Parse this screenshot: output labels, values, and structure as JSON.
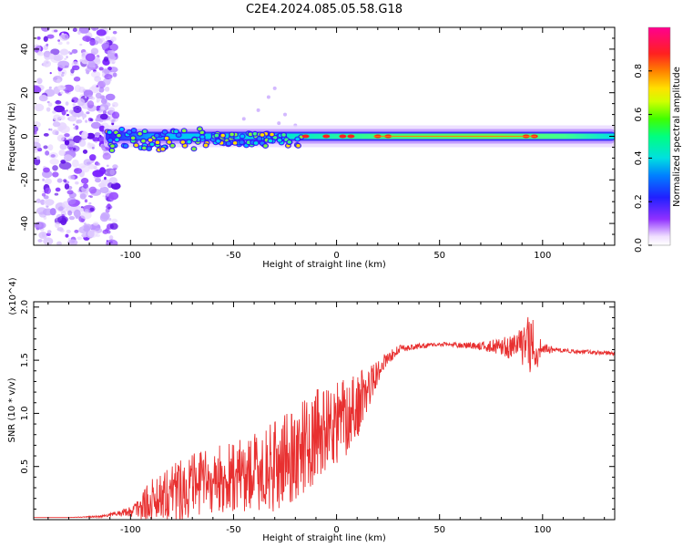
{
  "title": "C2E4.2024.085.05.58.G18",
  "chart_data": [
    {
      "type": "heatmap",
      "xlabel": "Height of straight line (km)",
      "ylabel": "Frequency (Hz)",
      "xlim": [
        -147,
        135
      ],
      "ylim": [
        -50,
        50
      ],
      "x_ticks": [
        -100,
        -50,
        0,
        50,
        100
      ],
      "y_ticks": [
        -40,
        -20,
        0,
        20,
        40
      ],
      "colorbar": {
        "label": "Normalized spectral amplitude",
        "range": [
          0,
          1
        ],
        "ticks": [
          "0.0",
          "0.2",
          "0.4",
          "0.6",
          "0.8"
        ],
        "colormap": "rainbow (purple-blue-cyan-green-yellow-red-magenta)"
      },
      "ridge": {
        "frequency_hz": 0,
        "start_km": -113,
        "end_km": 135,
        "note": "diffuse noise scatter spans x < -108 km across all frequencies"
      }
    },
    {
      "type": "line",
      "xlabel": "Height of straight line (km)",
      "ylabel": "SNR (10 * v/v)",
      "y_multiplier": "(x10^4)",
      "xlim": [
        -147,
        135
      ],
      "ylim": [
        0,
        2.05
      ],
      "x_ticks": [
        -100,
        -50,
        0,
        50,
        100
      ],
      "y_ticks": [
        "0.5",
        "1.0",
        "1.5",
        "2.0"
      ],
      "series": [
        {
          "color": "#e83030",
          "x": [
            -147,
            -130,
            -115,
            -108,
            -100,
            -95,
            -90,
            -85,
            -80,
            -75,
            -70,
            -65,
            -60,
            -55,
            -50,
            -45,
            -40,
            -35,
            -30,
            -25,
            -20,
            -15,
            -10,
            -5,
            0,
            5,
            10,
            15,
            20,
            25,
            30,
            35,
            40,
            45,
            50,
            55,
            60,
            65,
            70,
            75,
            80,
            85,
            90,
            93,
            95,
            97,
            100,
            105,
            110,
            115,
            120,
            125,
            130,
            135
          ],
          "y": [
            0.02,
            0.02,
            0.03,
            0.05,
            0.08,
            0.12,
            0.18,
            0.24,
            0.28,
            0.3,
            0.32,
            0.34,
            0.36,
            0.38,
            0.4,
            0.42,
            0.44,
            0.46,
            0.5,
            0.56,
            0.62,
            0.7,
            0.78,
            0.85,
            0.9,
            0.98,
            1.08,
            1.22,
            1.4,
            1.52,
            1.6,
            1.62,
            1.63,
            1.64,
            1.65,
            1.65,
            1.64,
            1.64,
            1.63,
            1.63,
            1.63,
            1.62,
            1.64,
            1.65,
            1.62,
            1.6,
            1.61,
            1.6,
            1.59,
            1.58,
            1.58,
            1.57,
            1.57,
            1.56
          ],
          "noise_amplitude": [
            0,
            0,
            0.01,
            0.02,
            0.05,
            0.12,
            0.2,
            0.25,
            0.28,
            0.3,
            0.3,
            0.32,
            0.32,
            0.33,
            0.35,
            0.36,
            0.38,
            0.4,
            0.42,
            0.44,
            0.45,
            0.45,
            0.44,
            0.42,
            0.4,
            0.38,
            0.32,
            0.22,
            0.12,
            0.06,
            0.04,
            0.03,
            0.03,
            0.02,
            0.02,
            0.02,
            0.03,
            0.03,
            0.04,
            0.06,
            0.08,
            0.12,
            0.18,
            0.3,
            0.35,
            0.2,
            0.05,
            0.03,
            0.02,
            0.02,
            0.02,
            0.02,
            0.02,
            0.02
          ]
        }
      ]
    }
  ]
}
